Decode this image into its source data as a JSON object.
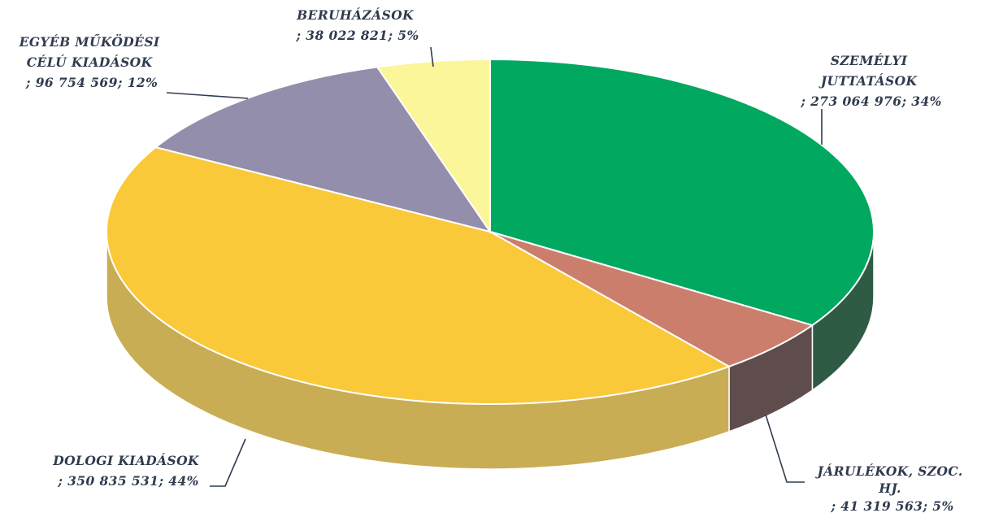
{
  "chart_data": {
    "type": "pie",
    "style": "3d",
    "categories": [
      "SZEMÉLYI JUTTATÁSOK",
      "JÁRULÉKOK, SZOC. HJ.",
      "DOLOGI KIADÁSOK",
      "EGYÉB MŰKÖDÉSI CÉLÚ KIADÁSOK",
      "BERUHÁZÁSOK"
    ],
    "values": [
      273064976,
      41319563,
      350835531,
      96754569,
      38022821
    ],
    "percentages": [
      34,
      5,
      44,
      12,
      5
    ],
    "colors": [
      "#00a860",
      "#cc7e6c",
      "#f9c93a",
      "#928eab",
      "#fbf69a"
    ],
    "side_colors": [
      "#2f5b44",
      "#5f4d4d",
      "#c9ad55",
      "#7d7a92",
      "#d6d184"
    ],
    "labels": [
      {
        "lines": [
          "SZEMÉLYI",
          "JUTTATÁSOK",
          "; 273 064 976; 34%"
        ]
      },
      {
        "lines": [
          "JÁRULÉKOK, SZOC.",
          "HJ.",
          "; 41 319 563; 5%"
        ]
      },
      {
        "lines": [
          "DOLOGI KIADÁSOK",
          "; 350 835 531; 44%"
        ]
      },
      {
        "lines": [
          "EGYÉB MŰKÖDÉSI",
          "CÉLÚ KIADÁSOK",
          "; 96 754 569; 12%"
        ]
      },
      {
        "lines": [
          "BERUHÁZÁSOK",
          "; 38 022 821; 5%"
        ]
      }
    ],
    "legend": "none",
    "title": ""
  }
}
